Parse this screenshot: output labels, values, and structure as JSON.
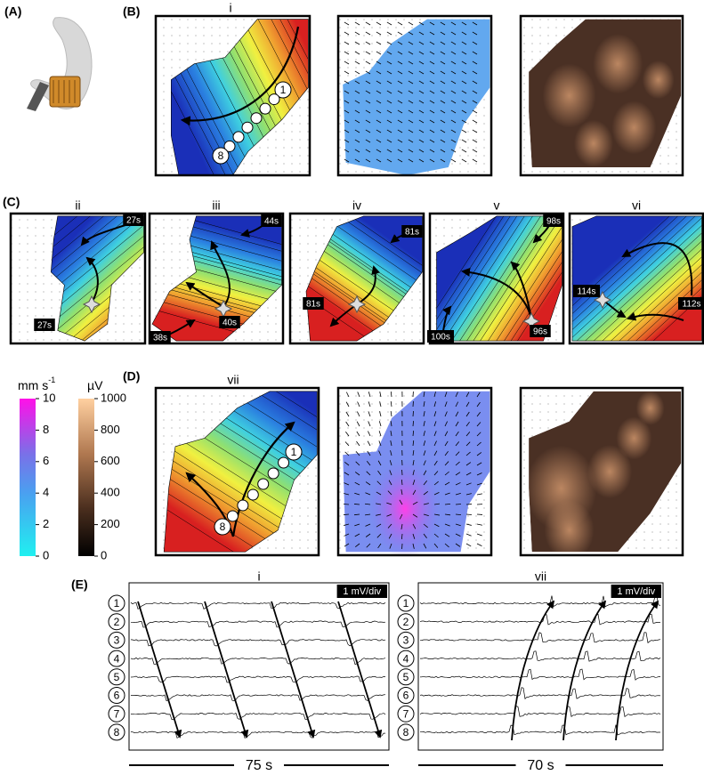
{
  "panel_labels": [
    "(A)",
    "(B)",
    "(C)",
    "(D)",
    "(E)"
  ],
  "panel_b": {
    "title": "i",
    "electrodes": {
      "first": "1",
      "last": "8"
    }
  },
  "panel_c": [
    {
      "title": "ii",
      "times": [
        "27s",
        "27s"
      ]
    },
    {
      "title": "iii",
      "times": [
        "44s",
        "40s",
        "38s"
      ]
    },
    {
      "title": "iv",
      "times": [
        "81s",
        "81s"
      ]
    },
    {
      "title": "v",
      "times": [
        "98s",
        "100s",
        "96s"
      ]
    },
    {
      "title": "vi",
      "times": [
        "114s",
        "112s"
      ]
    }
  ],
  "panel_d": {
    "title": "vii",
    "electrodes": {
      "first": "1",
      "last": "8"
    }
  },
  "colorbars": [
    {
      "unit": "mm s",
      "unit_exponent": "-1",
      "ticks": [
        0,
        2,
        4,
        6,
        8,
        10
      ]
    },
    {
      "unit": "µV",
      "ticks": [
        0,
        200,
        400,
        600,
        800,
        1000
      ]
    }
  ],
  "panel_e": {
    "scale": "1 mV/div",
    "channels": [
      "1",
      "2",
      "3",
      "4",
      "5",
      "6",
      "7",
      "8"
    ],
    "recordings": [
      {
        "title": "i",
        "duration": "75 s"
      },
      {
        "title": "vii",
        "duration": "70 s"
      }
    ]
  }
}
